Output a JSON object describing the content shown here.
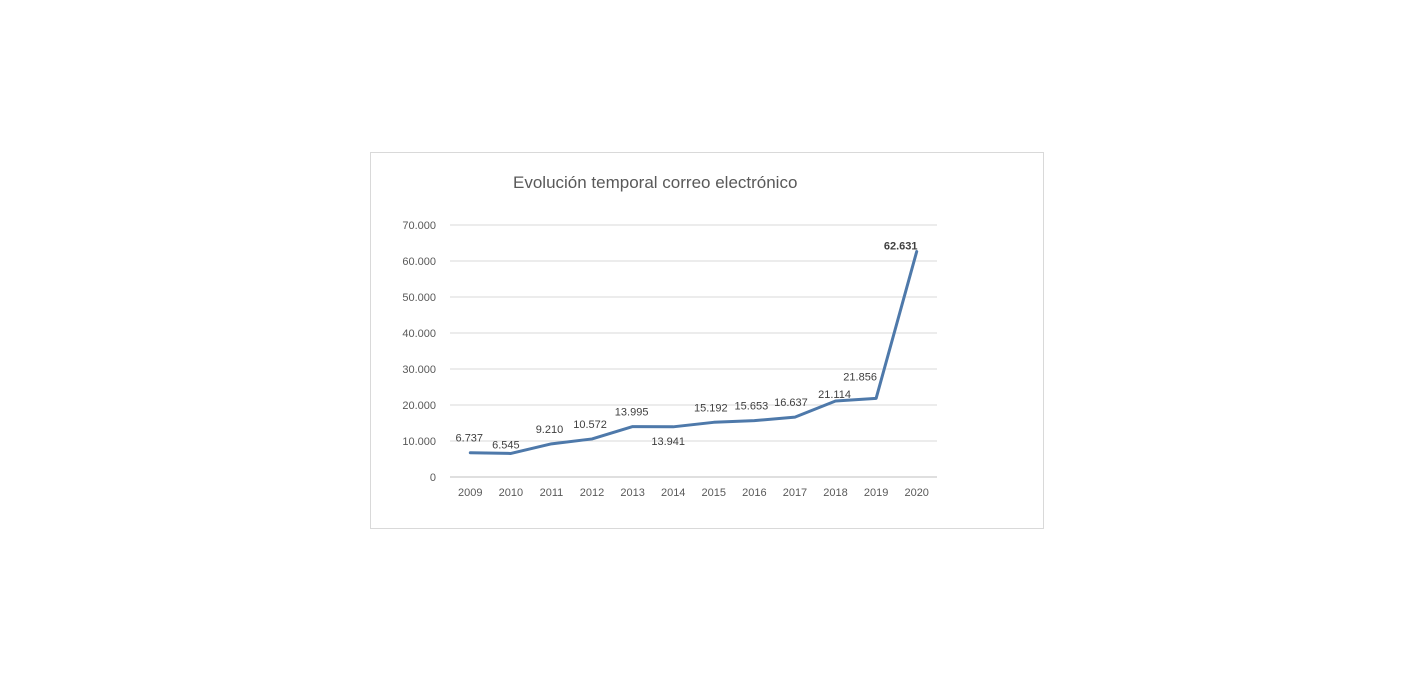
{
  "chart_data": {
    "type": "line",
    "title": "Evolución temporal correo electrónico",
    "xlabel": "",
    "ylabel": "",
    "categories": [
      "2009",
      "2010",
      "2011",
      "2012",
      "2013",
      "2014",
      "2015",
      "2016",
      "2017",
      "2018",
      "2019",
      "2020"
    ],
    "series": [
      {
        "values": [
          6737,
          6545,
          9210,
          10572,
          13995,
          13941,
          15192,
          15653,
          16637,
          21114,
          21856,
          62631
        ],
        "labels": [
          "6.737",
          "6.545",
          "9.210",
          "10.572",
          "13.995",
          "13.941",
          "15.192",
          "15.653",
          "16.637",
          "21.114",
          "21.856",
          "62.631"
        ],
        "color": "#4e79aa"
      }
    ],
    "ylim": [
      0,
      70000
    ],
    "y_ticks": [
      0,
      10000,
      20000,
      30000,
      40000,
      50000,
      60000,
      70000
    ],
    "y_tick_labels": [
      "0",
      "10.000",
      "20.000",
      "30.000",
      "40.000",
      "50.000",
      "60.000",
      "70.000"
    ],
    "grid": true,
    "legend": "none"
  }
}
